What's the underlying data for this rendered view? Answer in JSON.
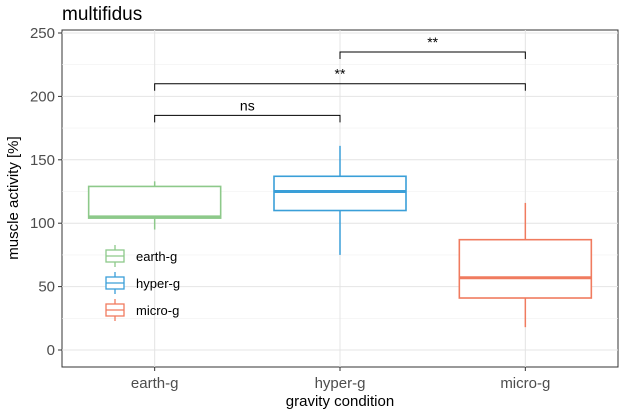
{
  "chart_data": {
    "type": "box",
    "title": "multifidus",
    "xlabel": "gravity condition",
    "ylabel": "muscle activity [%]",
    "ylim": [
      0,
      250
    ],
    "yticks": [
      0,
      50,
      100,
      150,
      200,
      250
    ],
    "categories": [
      "earth-g",
      "hyper-g",
      "micro-g"
    ],
    "grid": true,
    "legend_position": "inside-left",
    "series": [
      {
        "name": "earth-g",
        "color": "#8dc98a",
        "whisker_low": 95,
        "q1": 104,
        "median": 105,
        "q3": 129,
        "whisker_high": 133
      },
      {
        "name": "hyper-g",
        "color": "#3a9fd8",
        "whisker_low": 75,
        "q1": 110,
        "median": 125,
        "q3": 137,
        "whisker_high": 161
      },
      {
        "name": "micro-g",
        "color": "#f07b5f",
        "whisker_low": 18,
        "q1": 41,
        "median": 57,
        "q3": 87,
        "whisker_high": 116
      }
    ],
    "comparisons": [
      {
        "from": "earth-g",
        "to": "hyper-g",
        "y": 185,
        "label": "ns"
      },
      {
        "from": "earth-g",
        "to": "micro-g",
        "y": 210,
        "label": "**"
      },
      {
        "from": "hyper-g",
        "to": "micro-g",
        "y": 235,
        "label": "**"
      }
    ]
  }
}
